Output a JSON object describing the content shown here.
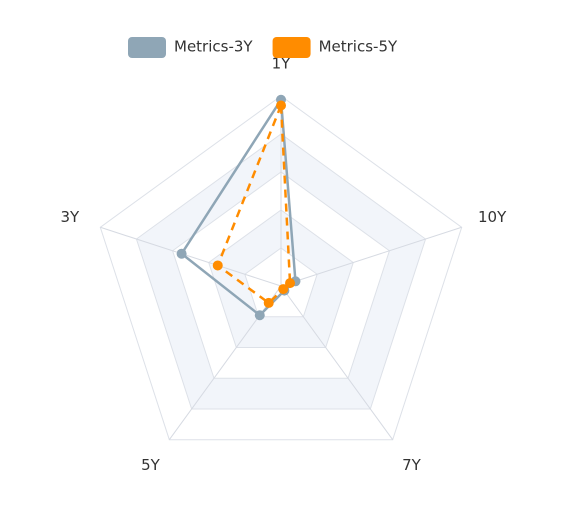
{
  "chart_data": {
    "type": "radar",
    "indicators": [
      "1Y",
      "3Y",
      "5Y",
      "7Y",
      "10Y"
    ],
    "series": [
      {
        "name": "Metrics-3Y",
        "color": "#8fa6b6",
        "dashed": false,
        "values": [
          98,
          55,
          19,
          3,
          8
        ]
      },
      {
        "name": "Metrics-5Y",
        "color": "#ff8c00",
        "dashed": true,
        "values": [
          95,
          35,
          11,
          2,
          5
        ]
      }
    ],
    "rlim": [
      0,
      100
    ],
    "split_number": 5,
    "legend": "top"
  }
}
